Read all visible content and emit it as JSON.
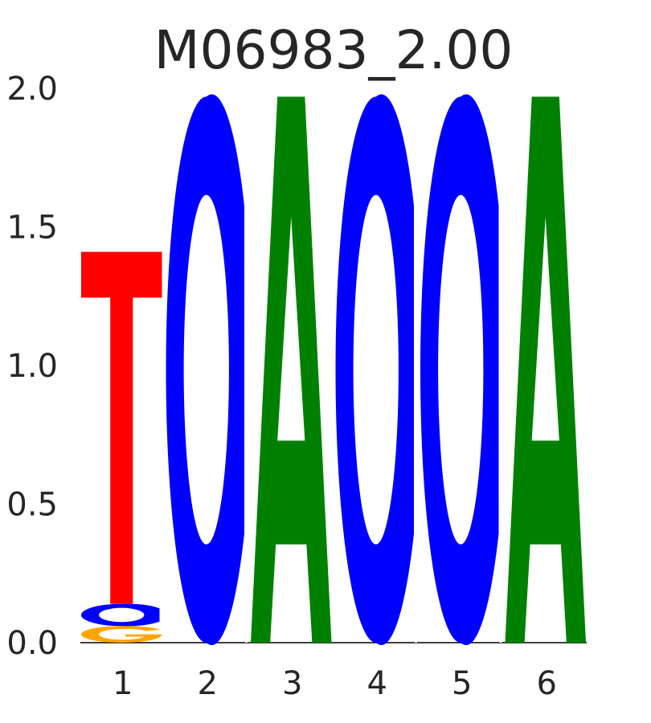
{
  "chart_data": {
    "type": "sequence-logo",
    "title": "M06983_2.00",
    "xlabel": "",
    "ylabel": "",
    "ylim": [
      0,
      2.0
    ],
    "y_ticks": [
      "0.0",
      "0.5",
      "1.0",
      "1.5",
      "2.0"
    ],
    "categories": [
      "1",
      "2",
      "3",
      "4",
      "5",
      "6"
    ],
    "colors": {
      "A": "#008000",
      "C": "#0000ff",
      "G": "#ffa500",
      "T": "#ff0000"
    },
    "positions": [
      {
        "position": "1",
        "letters": [
          {
            "base": "G",
            "height": 0.06
          },
          {
            "base": "C",
            "height": 0.08
          },
          {
            "base": "T",
            "height": 1.27
          }
        ]
      },
      {
        "position": "2",
        "letters": [
          {
            "base": "C",
            "height": 1.97
          }
        ]
      },
      {
        "position": "3",
        "letters": [
          {
            "base": "A",
            "height": 1.97
          }
        ]
      },
      {
        "position": "4",
        "letters": [
          {
            "base": "C",
            "height": 1.97
          }
        ]
      },
      {
        "position": "5",
        "letters": [
          {
            "base": "C",
            "height": 1.97
          }
        ]
      },
      {
        "position": "6",
        "letters": [
          {
            "base": "A",
            "height": 1.97
          }
        ]
      }
    ]
  }
}
